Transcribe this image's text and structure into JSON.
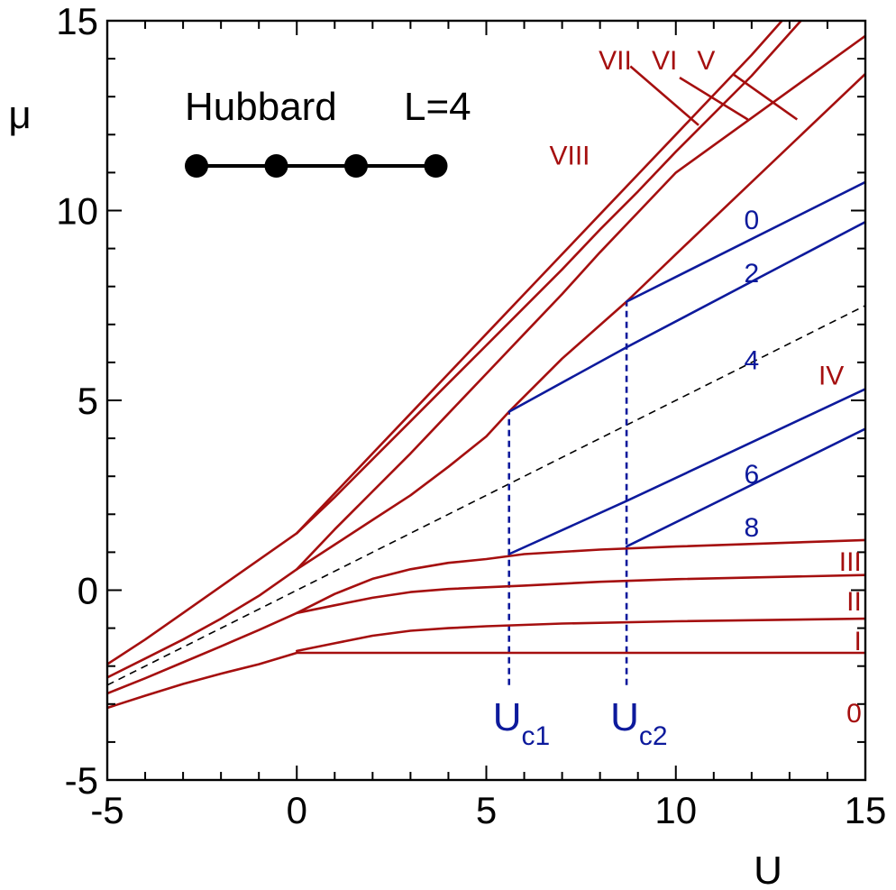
{
  "chart_data": {
    "type": "line",
    "title": "",
    "xlabel": "U",
    "ylabel": "μ",
    "xlim": [
      -5,
      15
    ],
    "ylim": [
      -5,
      15
    ],
    "x_ticks": [
      -5,
      0,
      5,
      10,
      15
    ],
    "y_ticks": [
      -5,
      0,
      5,
      10,
      15
    ],
    "grid": false,
    "legend": "none",
    "colors": {
      "red": "#a50f0f",
      "blue": "#0d1a9c",
      "black": "#000000",
      "axis": "#000000"
    },
    "series": [
      {
        "id": "red-1",
        "color": "red",
        "points": [
          [
            -5,
            -3.1
          ],
          [
            -4,
            -2.78
          ],
          [
            -3,
            -2.47
          ],
          [
            -2,
            -2.2
          ],
          [
            -1,
            -1.95
          ],
          [
            0,
            -1.65
          ],
          [
            5,
            -1.65
          ],
          [
            10,
            -1.65
          ],
          [
            15,
            -1.65
          ]
        ]
      },
      {
        "id": "red-2",
        "color": "red",
        "points": [
          [
            0,
            -1.6
          ],
          [
            1,
            -1.4
          ],
          [
            2,
            -1.2
          ],
          [
            3,
            -1.07
          ],
          [
            4,
            -1.0
          ],
          [
            5,
            -0.95
          ],
          [
            7,
            -0.88
          ],
          [
            10,
            -0.82
          ],
          [
            15,
            -0.75
          ]
        ]
      },
      {
        "id": "red-3",
        "color": "red",
        "points": [
          [
            -5,
            -2.72
          ],
          [
            -4,
            -2.32
          ],
          [
            -3,
            -1.9
          ],
          [
            -2,
            -1.48
          ],
          [
            -1,
            -1.05
          ],
          [
            0,
            -0.6
          ],
          [
            1,
            -0.4
          ],
          [
            2,
            -0.2
          ],
          [
            3,
            -0.05
          ],
          [
            4,
            0.03
          ],
          [
            6,
            0.12
          ],
          [
            8,
            0.22
          ],
          [
            10,
            0.29
          ],
          [
            15,
            0.4
          ]
        ]
      },
      {
        "id": "red-4",
        "color": "red",
        "points": [
          [
            0,
            -0.6
          ],
          [
            1,
            -0.1
          ],
          [
            2,
            0.3
          ],
          [
            3,
            0.55
          ],
          [
            4,
            0.72
          ],
          [
            5,
            0.82
          ],
          [
            6,
            0.95
          ],
          [
            8,
            1.07
          ],
          [
            10,
            1.15
          ],
          [
            15,
            1.32
          ]
        ]
      },
      {
        "id": "red-5",
        "color": "red",
        "points": [
          [
            -5,
            -2.3
          ],
          [
            -4,
            -1.8
          ],
          [
            -3,
            -1.3
          ],
          [
            -2,
            -0.75
          ],
          [
            -1,
            -0.15
          ],
          [
            0,
            0.55
          ],
          [
            1,
            1.2
          ],
          [
            2,
            1.85
          ],
          [
            3,
            2.5
          ],
          [
            4,
            3.25
          ],
          [
            5,
            4.05
          ],
          [
            5.6,
            4.7
          ],
          [
            7,
            6.1
          ],
          [
            8.7,
            7.6
          ],
          [
            10,
            8.85
          ],
          [
            15,
            13.6
          ]
        ]
      },
      {
        "id": "red-6",
        "color": "red",
        "points": [
          [
            0,
            0.55
          ],
          [
            1,
            1.6
          ],
          [
            2,
            2.6
          ],
          [
            3,
            3.6
          ],
          [
            4,
            4.65
          ],
          [
            5,
            5.7
          ],
          [
            6,
            6.75
          ],
          [
            7,
            7.8
          ],
          [
            8,
            8.9
          ],
          [
            9,
            9.95
          ],
          [
            10,
            11.0
          ],
          [
            15,
            14.6
          ]
        ]
      },
      {
        "id": "red-7",
        "color": "red",
        "points": [
          [
            -5,
            -1.95
          ],
          [
            -4,
            -1.3
          ],
          [
            -3,
            -0.6
          ],
          [
            -2,
            0.1
          ],
          [
            -1,
            0.8
          ],
          [
            0,
            1.5
          ],
          [
            1,
            2.45
          ],
          [
            2,
            3.45
          ],
          [
            3,
            4.45
          ],
          [
            4,
            5.45
          ],
          [
            5,
            6.45
          ],
          [
            6,
            7.45
          ],
          [
            7,
            8.45
          ],
          [
            8,
            9.5
          ],
          [
            9,
            10.5
          ],
          [
            10,
            11.55
          ],
          [
            12,
            13.55
          ],
          [
            13.3,
            15
          ]
        ]
      },
      {
        "id": "red-8",
        "color": "red",
        "points": [
          [
            0,
            1.5
          ],
          [
            1,
            2.55
          ],
          [
            2,
            3.6
          ],
          [
            3,
            4.65
          ],
          [
            4,
            5.7
          ],
          [
            5,
            6.75
          ],
          [
            6,
            7.8
          ],
          [
            7,
            8.85
          ],
          [
            8,
            9.9
          ],
          [
            9,
            10.95
          ],
          [
            10,
            12.0
          ],
          [
            11,
            13.05
          ],
          [
            12,
            14.1
          ],
          [
            12.8,
            15
          ]
        ]
      },
      {
        "id": "blue-1",
        "color": "blue",
        "points": [
          [
            5.6,
            4.7
          ],
          [
            8.7,
            6.4
          ],
          [
            15,
            9.7
          ]
        ]
      },
      {
        "id": "blue-2",
        "color": "blue",
        "points": [
          [
            8.7,
            7.6
          ],
          [
            15,
            10.75
          ]
        ]
      },
      {
        "id": "blue-3",
        "color": "blue",
        "points": [
          [
            5.6,
            0.95
          ],
          [
            8.7,
            2.35
          ],
          [
            15,
            5.3
          ]
        ]
      },
      {
        "id": "blue-4",
        "color": "blue",
        "points": [
          [
            8.7,
            1.15
          ],
          [
            15,
            4.25
          ]
        ]
      }
    ],
    "dashed_line": {
      "color": "black",
      "points": [
        [
          -5,
          -2.5
        ],
        [
          15,
          7.5
        ]
      ]
    },
    "vertical_markers": [
      {
        "name": "uc1",
        "x": 5.6,
        "y_from": -2.5,
        "y_to": 4.7,
        "base": "U",
        "sub": "c1"
      },
      {
        "name": "uc2",
        "x": 8.7,
        "y_from": -2.5,
        "y_to": 7.6,
        "base": "U",
        "sub": "c2"
      }
    ],
    "leader_lines": [
      {
        "color": "red",
        "points": [
          [
            8.8,
            13.8
          ],
          [
            10.6,
            12.25
          ]
        ]
      },
      {
        "color": "red",
        "points": [
          [
            10.1,
            13.5
          ],
          [
            11.9,
            12.4
          ]
        ]
      },
      {
        "color": "red",
        "points": [
          [
            11.5,
            13.6
          ],
          [
            13.2,
            12.4
          ]
        ]
      }
    ],
    "annotations": [
      {
        "text": "VII",
        "x": 8.4,
        "y": 14.0,
        "color": "red"
      },
      {
        "text": "VI",
        "x": 9.7,
        "y": 14.0,
        "color": "red"
      },
      {
        "text": "V",
        "x": 10.8,
        "y": 14.0,
        "color": "red"
      },
      {
        "text": "VIII",
        "x": 7.2,
        "y": 11.5,
        "color": "red"
      },
      {
        "text": "0",
        "x": 12.0,
        "y": 9.8,
        "color": "blue"
      },
      {
        "text": "2",
        "x": 12.0,
        "y": 8.4,
        "color": "blue"
      },
      {
        "text": "4",
        "x": 12.0,
        "y": 6.1,
        "color": "blue"
      },
      {
        "text": "IV",
        "x": 14.1,
        "y": 5.7,
        "color": "red"
      },
      {
        "text": "6",
        "x": 12.0,
        "y": 3.1,
        "color": "blue"
      },
      {
        "text": "8",
        "x": 12.0,
        "y": 1.7,
        "color": "blue"
      },
      {
        "text": "III",
        "x": 14.9,
        "y": 0.8,
        "color": "red"
      },
      {
        "text": "II",
        "x": 14.9,
        "y": -0.25,
        "color": "red"
      },
      {
        "text": "I",
        "x": 14.9,
        "y": -1.3,
        "color": "red"
      },
      {
        "text": "0",
        "x": 14.9,
        "y": -3.2,
        "color": "red"
      }
    ],
    "inset": {
      "model": "Hubbard",
      "size": "L=4",
      "sites": 4
    }
  }
}
